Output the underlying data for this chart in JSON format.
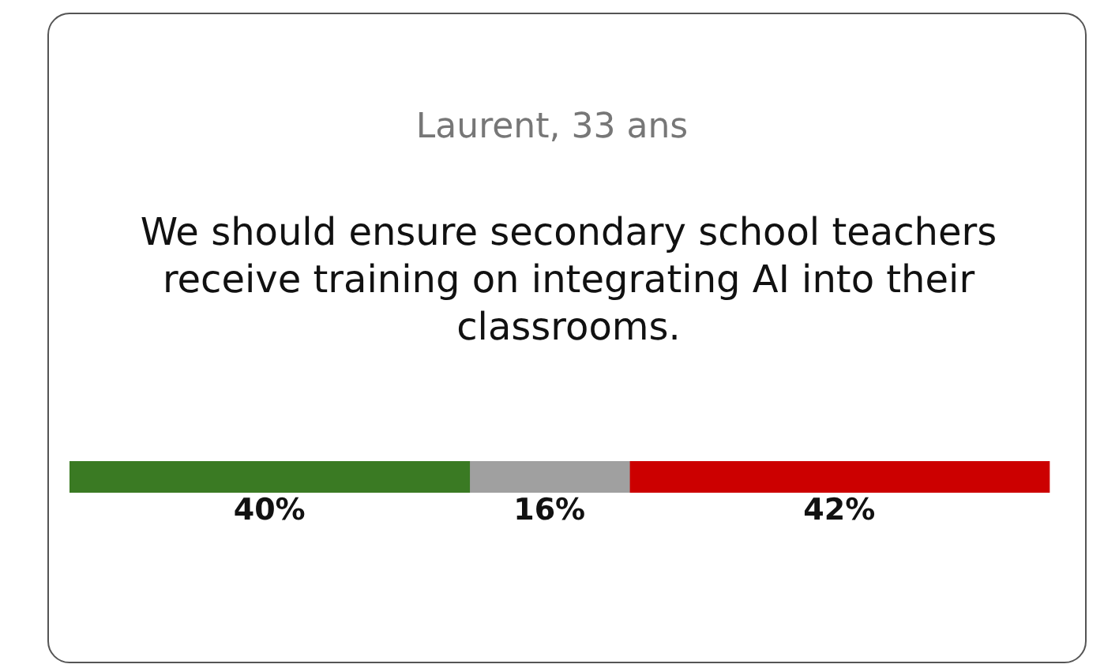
{
  "chart_data": {
    "type": "bar",
    "orientation": "horizontal",
    "stacked": true,
    "subtitle": "Laurent, 33 ans",
    "title": "We should ensure secondary school teachers receive training on integrating AI into their classrooms.",
    "categories": [
      null
    ],
    "tick_labels": false,
    "legend": false,
    "series": [
      {
        "color": "#3a7a23",
        "values": [
          40
        ],
        "value_labels": [
          "40%"
        ]
      },
      {
        "color": "#a0a0a0",
        "values": [
          16
        ],
        "value_labels": [
          "16%"
        ]
      },
      {
        "color": "#cc0000",
        "values": [
          42
        ],
        "value_labels": [
          "42%"
        ]
      }
    ]
  }
}
